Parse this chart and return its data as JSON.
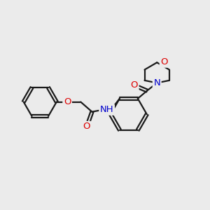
{
  "bg_color": "#ebebeb",
  "bond_color": "#1a1a1a",
  "bond_width": 1.6,
  "atom_colors": {
    "O": "#dd0000",
    "N": "#0000cc",
    "H": "#666666",
    "C": "#1a1a1a"
  },
  "font_size_atom": 9.5,
  "dbo": 0.08
}
